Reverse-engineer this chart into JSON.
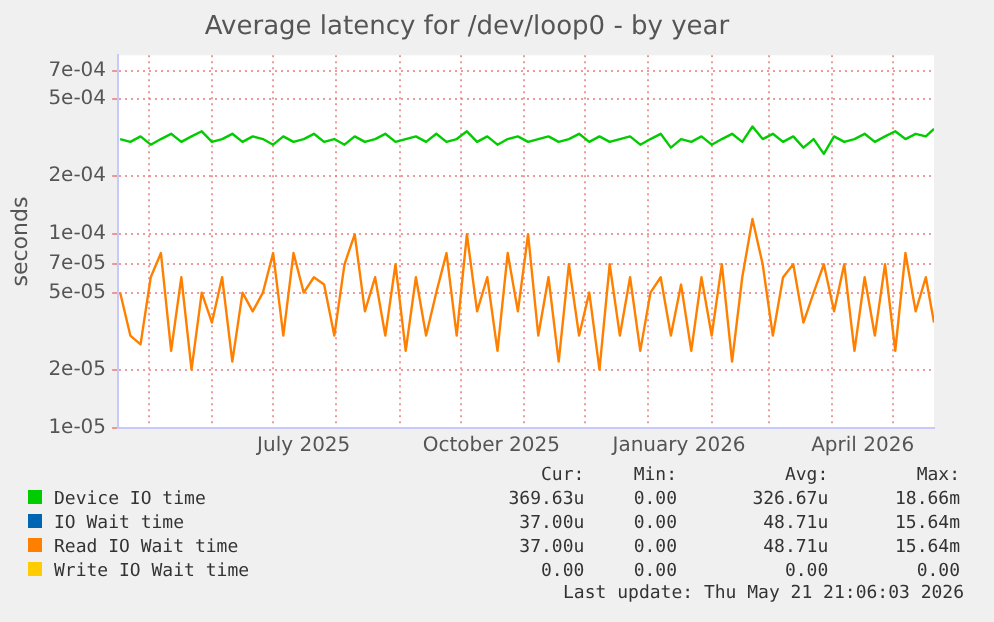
{
  "chart_data": {
    "type": "line",
    "title": "Average latency for /dev/loop0 - by year",
    "ylabel": "seconds",
    "log": "y",
    "grid": true,
    "legend": "bottom",
    "marker": "none",
    "line_style": "solid",
    "x": [
      "2025-04-17",
      "2025-04-22",
      "2025-04-27",
      "2025-05-02",
      "2025-05-07",
      "2025-05-12",
      "2025-05-17",
      "2025-05-22",
      "2025-05-27",
      "2025-06-01",
      "2025-06-06",
      "2025-06-11",
      "2025-06-16",
      "2025-06-21",
      "2025-06-26",
      "2025-07-01",
      "2025-07-06",
      "2025-07-11",
      "2025-07-16",
      "2025-07-21",
      "2025-07-26",
      "2025-07-31",
      "2025-08-05",
      "2025-08-10",
      "2025-08-15",
      "2025-08-20",
      "2025-08-25",
      "2025-08-30",
      "2025-09-04",
      "2025-09-09",
      "2025-09-14",
      "2025-09-19",
      "2025-09-24",
      "2025-09-29",
      "2025-10-04",
      "2025-10-09",
      "2025-10-14",
      "2025-10-19",
      "2025-10-24",
      "2025-10-29",
      "2025-11-03",
      "2025-11-08",
      "2025-11-13",
      "2025-11-18",
      "2025-11-23",
      "2025-11-28",
      "2025-12-03",
      "2025-12-08",
      "2025-12-13",
      "2025-12-18",
      "2025-12-23",
      "2025-12-28",
      "2026-01-02",
      "2026-01-07",
      "2026-01-12",
      "2026-01-17",
      "2026-01-22",
      "2026-01-27",
      "2026-02-01",
      "2026-02-06",
      "2026-02-11",
      "2026-02-16",
      "2026-02-21",
      "2026-02-26",
      "2026-03-03",
      "2026-03-08",
      "2026-03-13",
      "2026-03-18",
      "2026-03-23",
      "2026-03-28",
      "2026-04-02",
      "2026-04-07",
      "2026-04-12",
      "2026-04-17",
      "2026-04-22",
      "2026-04-27",
      "2026-05-02",
      "2026-05-07",
      "2026-05-12",
      "2026-05-17",
      "2026-05-21"
    ],
    "xlim": [
      "2025-04-16",
      "2026-05-21"
    ],
    "xticks": [
      {
        "value": "2025-05-01",
        "label": null
      },
      {
        "value": "2025-06-01",
        "label": null
      },
      {
        "value": "2025-07-01",
        "label": null
      },
      {
        "value": "2025-07-16",
        "label": "July 2025"
      },
      {
        "value": "2025-08-01",
        "label": null
      },
      {
        "value": "2025-09-01",
        "label": null
      },
      {
        "value": "2025-10-01",
        "label": null
      },
      {
        "value": "2025-10-16",
        "label": "October 2025"
      },
      {
        "value": "2025-11-01",
        "label": null
      },
      {
        "value": "2025-12-01",
        "label": null
      },
      {
        "value": "2026-01-01",
        "label": null
      },
      {
        "value": "2026-01-16",
        "label": "January 2026"
      },
      {
        "value": "2026-02-01",
        "label": null
      },
      {
        "value": "2026-03-01",
        "label": null
      },
      {
        "value": "2026-04-01",
        "label": null
      },
      {
        "value": "2026-04-16",
        "label": "April 2026"
      },
      {
        "value": "2026-05-01",
        "label": null
      }
    ],
    "ylim": [
      1e-05,
      0.00084
    ],
    "yticks": [
      {
        "value": 1e-05,
        "label": "1e-05"
      },
      {
        "value": 2e-05,
        "label": "2e-05"
      },
      {
        "value": 5e-05,
        "label": "5e-05"
      },
      {
        "value": 7e-05,
        "label": "7e-05"
      },
      {
        "value": 0.0001,
        "label": "1e-04"
      },
      {
        "value": 0.0002,
        "label": "2e-04"
      },
      {
        "value": 0.0005,
        "label": "5e-04"
      },
      {
        "value": 0.0007,
        "label": "7e-04"
      }
    ],
    "series": [
      {
        "name": "Device IO time",
        "color": "#00cc00",
        "values": [
          0.00031,
          0.0003,
          0.00032,
          0.00029,
          0.00031,
          0.00033,
          0.0003,
          0.00032,
          0.00034,
          0.0003,
          0.00031,
          0.00033,
          0.0003,
          0.00032,
          0.00031,
          0.00029,
          0.00032,
          0.0003,
          0.00031,
          0.00033,
          0.0003,
          0.00031,
          0.00029,
          0.00032,
          0.0003,
          0.00031,
          0.00033,
          0.0003,
          0.00031,
          0.00032,
          0.0003,
          0.00033,
          0.0003,
          0.00031,
          0.00034,
          0.0003,
          0.00032,
          0.00029,
          0.00031,
          0.00032,
          0.0003,
          0.00031,
          0.00032,
          0.0003,
          0.00031,
          0.00033,
          0.0003,
          0.00032,
          0.0003,
          0.00031,
          0.00032,
          0.00029,
          0.00031,
          0.00033,
          0.00028,
          0.00031,
          0.0003,
          0.00032,
          0.00029,
          0.00031,
          0.00033,
          0.0003,
          0.00036,
          0.00031,
          0.00033,
          0.0003,
          0.00032,
          0.00028,
          0.00031,
          0.00026,
          0.00032,
          0.0003,
          0.00031,
          0.00033,
          0.0003,
          0.00032,
          0.00034,
          0.00031,
          0.00033,
          0.00032,
          0.00035
        ]
      },
      {
        "name": "IO Wait time",
        "color": "#0066b3",
        "values": [
          null,
          null,
          null,
          null,
          null,
          null,
          null,
          null,
          null,
          null,
          null,
          null,
          null,
          null,
          null,
          null,
          null,
          null,
          null,
          null,
          null,
          null,
          null,
          null,
          null,
          null,
          null,
          null,
          null,
          null,
          null,
          null,
          null,
          null,
          null,
          null,
          null,
          null,
          null,
          null,
          null,
          null,
          null,
          null,
          null,
          null,
          null,
          null,
          null,
          null,
          null,
          null,
          null,
          null,
          null,
          null,
          null,
          null,
          null,
          null,
          null,
          null,
          null,
          null,
          null,
          null,
          null,
          null,
          null,
          null,
          null,
          null,
          null,
          null,
          null,
          null,
          null,
          null,
          null,
          null,
          null
        ]
      },
      {
        "name": "Read IO Wait time",
        "color": "#ff8000",
        "values": [
          5e-05,
          3e-05,
          2.7e-05,
          6e-05,
          8e-05,
          2.5e-05,
          6e-05,
          2e-05,
          5e-05,
          3.5e-05,
          6e-05,
          2.2e-05,
          5e-05,
          4e-05,
          5e-05,
          8e-05,
          3e-05,
          8e-05,
          5e-05,
          6e-05,
          5.5e-05,
          3e-05,
          7e-05,
          0.0001,
          4e-05,
          6e-05,
          3e-05,
          7e-05,
          2.5e-05,
          6e-05,
          3e-05,
          5e-05,
          8e-05,
          3e-05,
          0.0001,
          4e-05,
          6e-05,
          2.5e-05,
          8e-05,
          4e-05,
          0.0001,
          3e-05,
          6e-05,
          2.2e-05,
          7e-05,
          3e-05,
          5e-05,
          2e-05,
          7e-05,
          3e-05,
          6e-05,
          2.5e-05,
          5e-05,
          6e-05,
          3e-05,
          5.5e-05,
          2.5e-05,
          6e-05,
          3e-05,
          7e-05,
          2.2e-05,
          6e-05,
          0.00012,
          7e-05,
          3e-05,
          6e-05,
          7e-05,
          3.5e-05,
          5e-05,
          7e-05,
          4e-05,
          7e-05,
          2.5e-05,
          6e-05,
          3e-05,
          7e-05,
          2.5e-05,
          8e-05,
          4e-05,
          6e-05,
          3.5e-05
        ]
      },
      {
        "name": "Write IO Wait time",
        "color": "#ffcc00",
        "values": [
          null,
          null,
          null,
          null,
          null,
          null,
          null,
          null,
          null,
          null,
          null,
          null,
          null,
          null,
          null,
          null,
          null,
          null,
          null,
          null,
          null,
          null,
          null,
          null,
          null,
          null,
          null,
          null,
          null,
          null,
          null,
          null,
          null,
          null,
          null,
          null,
          null,
          null,
          null,
          null,
          null,
          null,
          null,
          null,
          null,
          null,
          null,
          null,
          null,
          null,
          null,
          null,
          null,
          null,
          null,
          null,
          null,
          null,
          null,
          null,
          null,
          null,
          null,
          null,
          null,
          null,
          null,
          null,
          null,
          null,
          null,
          null,
          null,
          null,
          null,
          null,
          null,
          null,
          null,
          null,
          null
        ]
      }
    ],
    "annotations": [
      "Cur:",
      "Min:",
      "Avg:",
      "Max:",
      "369.63u",
      "0.00",
      "326.67u",
      "18.66m",
      "37.00u",
      "0.00",
      "48.71u",
      "15.64m",
      "37.00u",
      "0.00",
      "48.71u",
      "15.64m",
      "0.00",
      "0.00",
      "0.00",
      "0.00",
      "Last update: Thu May 21 21:06:03 2026"
    ]
  }
}
